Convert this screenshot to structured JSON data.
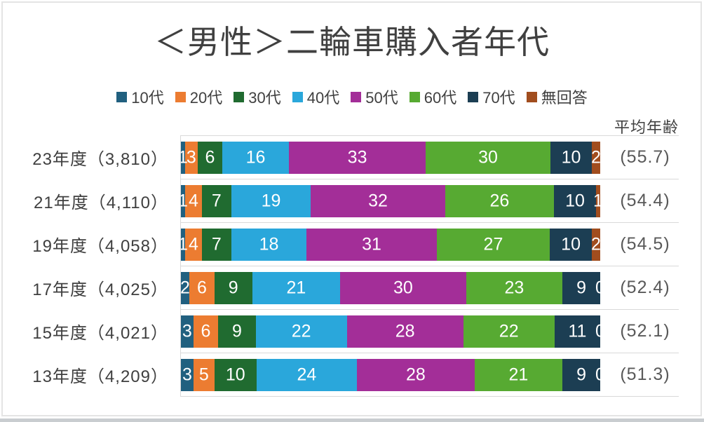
{
  "window": {
    "background": "#ffffff",
    "border_color": "#e4e4e4",
    "bottom_strip_color": "#c9cdd0"
  },
  "chart_data": {
    "type": "bar",
    "orientation": "horizontal",
    "stacked": "100%",
    "title": "＜男性＞二輪車購入者年代",
    "avg_header": "平均年齢",
    "legend_position": "top",
    "gridline_color": "#d9d9d9",
    "value_range": [
      0,
      100
    ],
    "categories": [
      "23年度（3,810）",
      "21年度（4,110）",
      "19年度（4,058）",
      "17年度（4,025）",
      "15年度（4,021）",
      "13年度（4,209）"
    ],
    "series": [
      {
        "name": "10代",
        "color": "#21607F",
        "values": [
          1,
          1,
          1,
          2,
          3,
          3
        ]
      },
      {
        "name": "20代",
        "color": "#EC7C31",
        "values": [
          3,
          4,
          4,
          6,
          6,
          5
        ]
      },
      {
        "name": "30代",
        "color": "#206B30",
        "values": [
          6,
          7,
          7,
          9,
          9,
          10
        ]
      },
      {
        "name": "40代",
        "color": "#2AA7DB",
        "values": [
          16,
          19,
          18,
          21,
          22,
          24
        ]
      },
      {
        "name": "50代",
        "color": "#A32E98",
        "values": [
          33,
          32,
          31,
          30,
          28,
          28
        ]
      },
      {
        "name": "60代",
        "color": "#57AA32",
        "values": [
          30,
          26,
          27,
          23,
          22,
          21
        ]
      },
      {
        "name": "70代",
        "color": "#1C3E53",
        "values": [
          10,
          10,
          10,
          9,
          11,
          9
        ]
      },
      {
        "name": "無回答",
        "color": "#A14D1E",
        "values": [
          2,
          1,
          2,
          0,
          0,
          0
        ]
      }
    ],
    "avg_ages": [
      "(55.7)",
      "(54.4)",
      "(54.5)",
      "(52.4)",
      "(52.1)",
      "(51.3)"
    ]
  }
}
